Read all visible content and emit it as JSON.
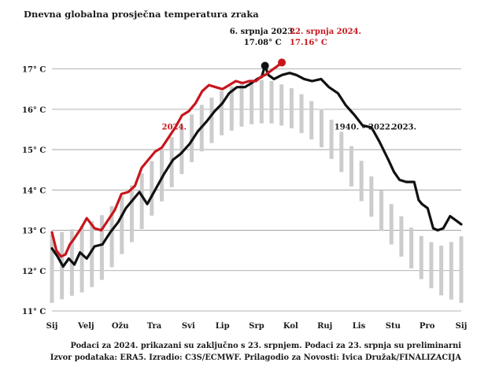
{
  "chart_data": {
    "type": "line",
    "title": "Dnevna globalna prosječna temperatura zraka",
    "ylim": [
      11,
      17.5
    ],
    "yticks": [
      11,
      12,
      13,
      14,
      15,
      16,
      17
    ],
    "ytick_labels": [
      "11° C",
      "12° C",
      "13° C",
      "14° C",
      "15° C",
      "16° C",
      "17° C"
    ],
    "months": [
      "Sij",
      "Velj",
      "Ožu",
      "Tra",
      "Svi",
      "Lip",
      "Srp",
      "Kol",
      "Ruj",
      "Lis",
      "Stu",
      "Pro",
      "Sij"
    ],
    "range_series": {
      "name": "1940. – 2022.",
      "label": "1940. – 2022.",
      "color": "#cccccc",
      "note": "raspon dnevnih vrijednosti (min–max) po danu u godini",
      "day": [
        0,
        15,
        31,
        46,
        59,
        74,
        90,
        105,
        120,
        135,
        151,
        166,
        181,
        196,
        212,
        227,
        243,
        258,
        273,
        288,
        304,
        319,
        334,
        349,
        365
      ],
      "min": [
        11.2,
        11.35,
        11.5,
        11.8,
        12.3,
        12.8,
        13.4,
        14.0,
        14.55,
        15.0,
        15.35,
        15.55,
        15.65,
        15.65,
        15.55,
        15.35,
        15.0,
        14.45,
        13.85,
        13.2,
        12.6,
        12.1,
        11.65,
        11.35,
        11.2
      ],
      "max": [
        12.9,
        13.0,
        13.15,
        13.4,
        13.75,
        14.2,
        14.75,
        15.25,
        15.75,
        16.15,
        16.45,
        16.65,
        16.75,
        16.7,
        16.55,
        16.3,
        15.95,
        15.45,
        14.85,
        14.2,
        13.6,
        13.1,
        12.75,
        12.6,
        12.85
      ]
    },
    "series": [
      {
        "name": "2023.",
        "label": "2023.",
        "color": "#111111",
        "day": [
          0,
          5,
          10,
          15,
          20,
          25,
          31,
          38,
          45,
          52,
          59,
          66,
          72,
          78,
          85,
          92,
          100,
          108,
          115,
          123,
          130,
          138,
          145,
          152,
          158,
          165,
          172,
          178,
          183,
          187,
          190,
          193,
          198,
          205,
          212,
          218,
          225,
          232,
          240,
          247,
          255,
          262,
          270,
          277,
          285,
          292,
          300,
          305,
          310,
          316,
          323,
          327,
          330,
          335,
          340,
          344,
          349,
          355,
          360,
          365
        ],
        "values": [
          12.55,
          12.35,
          12.1,
          12.3,
          12.15,
          12.45,
          12.3,
          12.6,
          12.65,
          12.95,
          13.2,
          13.55,
          13.75,
          13.95,
          13.65,
          14.0,
          14.4,
          14.75,
          14.9,
          15.15,
          15.45,
          15.7,
          15.95,
          16.15,
          16.4,
          16.55,
          16.55,
          16.65,
          16.75,
          16.8,
          17.08,
          16.85,
          16.75,
          16.85,
          16.9,
          16.85,
          16.75,
          16.7,
          16.75,
          16.55,
          16.4,
          16.1,
          15.85,
          15.6,
          15.55,
          15.2,
          14.75,
          14.45,
          14.25,
          14.2,
          14.2,
          13.75,
          13.65,
          13.55,
          13.05,
          13.0,
          13.05,
          13.35,
          13.25,
          13.15
        ]
      },
      {
        "name": "2024.",
        "label": "2024.",
        "color": "#c8161d",
        "day": [
          0,
          4,
          8,
          12,
          16,
          20,
          26,
          31,
          38,
          44,
          50,
          56,
          62,
          68,
          74,
          80,
          86,
          92,
          98,
          104,
          110,
          116,
          122,
          128,
          134,
          140,
          146,
          152,
          158,
          164,
          170,
          176,
          182,
          186,
          190,
          195,
          200,
          205
        ],
        "values": [
          12.95,
          12.5,
          12.35,
          12.4,
          12.65,
          12.8,
          13.05,
          13.3,
          13.05,
          13.0,
          13.25,
          13.5,
          13.9,
          13.95,
          14.1,
          14.55,
          14.75,
          14.95,
          15.05,
          15.3,
          15.55,
          15.85,
          15.95,
          16.15,
          16.45,
          16.6,
          16.55,
          16.5,
          16.6,
          16.7,
          16.65,
          16.7,
          16.7,
          16.8,
          16.85,
          16.95,
          17.05,
          17.16
        ]
      }
    ],
    "annotations": [
      {
        "id": "max2023",
        "line1": "6. srpnja 2023.",
        "line2": "17.08° C",
        "day": 190,
        "value": 17.08,
        "color": "#111111"
      },
      {
        "id": "max2024",
        "line1": "22. srpnja 2024.",
        "line2": "17.16° C",
        "day": 205,
        "value": 17.16,
        "color": "#c8161d"
      }
    ]
  },
  "footer": {
    "note": "Podaci za 2024. prikazani su zaključno s 23. srpnjem. Podaci za 23. srpnja su preliminarni",
    "source_prefix": "Izvor podataka:",
    "source_era": "ERA5.",
    "source_made": "Izradio:",
    "source_made_by": "C3S/ECMWF.",
    "source_adapted": "Prilagodio za Novosti: Ivica Družak/",
    "source_final": "FINALIZACIJA"
  }
}
